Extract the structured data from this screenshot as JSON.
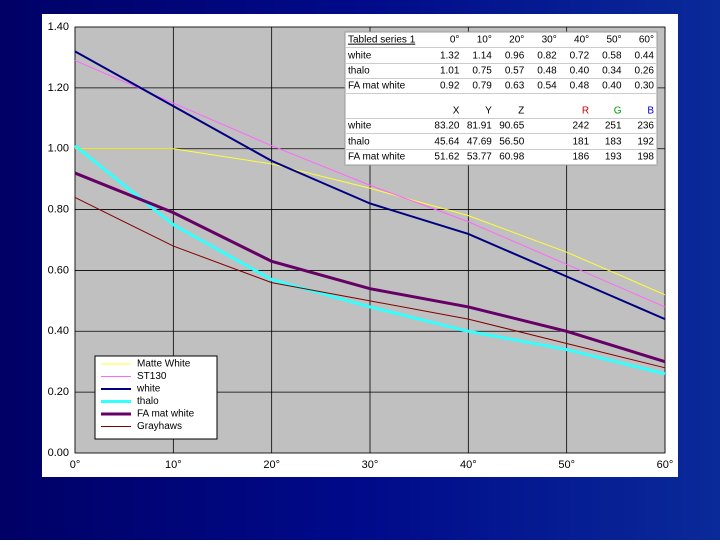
{
  "chart_data": {
    "type": "line",
    "xlim": [
      0,
      60
    ],
    "xticks": [
      {
        "value": 0,
        "label": "0°"
      },
      {
        "value": 10,
        "label": "10°"
      },
      {
        "value": 20,
        "label": "20°"
      },
      {
        "value": 30,
        "label": "30°"
      },
      {
        "value": 40,
        "label": "40°"
      },
      {
        "value": 50,
        "label": "50°"
      },
      {
        "value": 60,
        "label": "60°"
      }
    ],
    "ylim": [
      0,
      1.4
    ],
    "yticks": [
      {
        "value": 0,
        "label": "0.00"
      },
      {
        "value": 0.2,
        "label": "0.20"
      },
      {
        "value": 0.4,
        "label": "0.40"
      },
      {
        "value": 0.6,
        "label": "0.60"
      },
      {
        "value": 0.8,
        "label": "0.80"
      },
      {
        "value": 1.0,
        "label": "1.00"
      },
      {
        "value": 1.2,
        "label": "1.20"
      },
      {
        "value": 1.4,
        "label": "1.40"
      }
    ],
    "grid": true,
    "legend": "lower left",
    "x": [
      0,
      10,
      20,
      30,
      40,
      50,
      60
    ],
    "series": [
      {
        "name": "Matte White",
        "color": "#ffff33",
        "width": 1,
        "values": [
          1.0,
          1.0,
          0.95,
          0.87,
          0.78,
          0.66,
          0.52
        ]
      },
      {
        "name": "ST130",
        "color": "#ff66ff",
        "width": 1,
        "values": [
          1.29,
          1.15,
          1.01,
          0.88,
          0.76,
          0.62,
          0.48
        ]
      },
      {
        "name": "white",
        "color": "#000080",
        "width": 2,
        "values": [
          1.32,
          1.14,
          0.96,
          0.82,
          0.72,
          0.58,
          0.44
        ]
      },
      {
        "name": "thalo",
        "color": "#33ffff",
        "width": 3,
        "values": [
          1.01,
          0.75,
          0.57,
          0.48,
          0.4,
          0.34,
          0.26
        ]
      },
      {
        "name": "FA mat white",
        "color": "#660066",
        "width": 3,
        "values": [
          0.92,
          0.79,
          0.63,
          0.54,
          0.48,
          0.4,
          0.3
        ]
      },
      {
        "name": "Grayhaws",
        "color": "#800000",
        "width": 1,
        "values": [
          0.84,
          0.68,
          0.56,
          0.5,
          0.44,
          0.36,
          0.28
        ]
      }
    ],
    "table": {
      "header": [
        "Tabled series 1",
        "0°",
        "10°",
        "20°",
        "30°",
        "40°",
        "50°",
        "60°"
      ],
      "rows": [
        [
          "white",
          "1.32",
          "1.14",
          "0.96",
          "0.82",
          "0.72",
          "0.58",
          "0.44"
        ],
        [
          "thalo",
          "1.01",
          "0.75",
          "0.57",
          "0.48",
          "0.40",
          "0.34",
          "0.26"
        ],
        [
          "FA mat white",
          "0.92",
          "0.79",
          "0.63",
          "0.54",
          "0.48",
          "0.40",
          "0.30"
        ]
      ],
      "color_header": [
        "X",
        "Y",
        "Z",
        "R",
        "G",
        "B"
      ],
      "color_rows": [
        {
          "label": "white",
          "cells": [
            "83.20",
            "81.91",
            "90.65",
            "242",
            "251",
            "236"
          ]
        },
        {
          "label": "thalo",
          "cells": [
            "45.64",
            "47.69",
            "56.50",
            "181",
            "183",
            "192"
          ]
        },
        {
          "label": "FA mat white",
          "cells": [
            "51.62",
            "53.77",
            "60.98",
            "186",
            "193",
            "198"
          ]
        }
      ]
    }
  }
}
